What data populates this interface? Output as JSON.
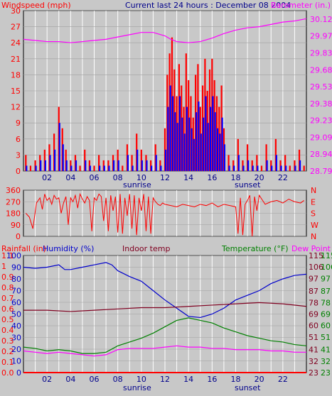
{
  "header": {
    "windspeed_label": "Windspeed (mph)",
    "center_title": "Current last 24 hours : December 08 2004",
    "barometer_label": "Barometer (in.)"
  },
  "bottom_header": {
    "rainfall_label": "Rainfall (in)",
    "humidity_label": "Humidity (%)",
    "indoor_label": "Indoor temp",
    "temperature_label": "Temperature (°F)",
    "dewpoint_label": "Dew Point"
  },
  "markers": {
    "sunrise": "sunrise",
    "sunset": "sunset"
  },
  "colors": {
    "wind_gust": "#ff0000",
    "wind_avg": "#0000ff",
    "barometer": "#ff00ff",
    "direction": "#ff0000",
    "humidity": "#0000cc",
    "indoor": "#800020",
    "temperature": "#008000",
    "dewpoint": "#ff00ff",
    "plot_bg": "#ffffff",
    "panel_bg": "#c8c8c8"
  },
  "chart_data": [
    {
      "type": "bar",
      "title": "Current last 24 hours : December 08 2004",
      "xlabel": "",
      "x_ticks": [
        "02",
        "04",
        "06",
        "08",
        "10",
        "12",
        "14",
        "16",
        "18",
        "20",
        "22"
      ],
      "xlim": [
        0,
        24
      ],
      "y_left_label": "Windspeed (mph)",
      "y_left_ticks": [
        0,
        3,
        6,
        9,
        12,
        15,
        18,
        21,
        24,
        27,
        30
      ],
      "ylim_left": [
        0,
        30
      ],
      "y_right_label": "Barometer (in.)",
      "y_right_ticks": [
        "28.79",
        "28.94",
        "29.09",
        "29.23",
        "29.38",
        "29.53",
        "29.68",
        "29.83",
        "29.97",
        "30.12"
      ],
      "ylim_right": [
        28.79,
        30.19
      ],
      "series": [
        {
          "name": "Windspeed",
          "type": "bar",
          "color": "#ff0000",
          "x": [
            0.2,
            0.6,
            1.0,
            1.4,
            1.8,
            2.2,
            2.6,
            3.0,
            3.3,
            3.6,
            4.0,
            4.4,
            4.8,
            5.2,
            5.6,
            6.0,
            6.4,
            6.8,
            7.2,
            7.6,
            8.0,
            8.4,
            8.8,
            9.2,
            9.6,
            10.0,
            10.4,
            10.8,
            11.2,
            11.6,
            12.0,
            12.2,
            12.4,
            12.6,
            12.8,
            13.0,
            13.2,
            13.4,
            13.6,
            13.8,
            14.0,
            14.2,
            14.4,
            14.6,
            14.8,
            15.0,
            15.2,
            15.4,
            15.6,
            15.8,
            16.0,
            16.2,
            16.4,
            16.6,
            16.8,
            17.0,
            17.4,
            17.8,
            18.2,
            18.6,
            19.0,
            19.4,
            19.8,
            20.2,
            20.6,
            21.0,
            21.4,
            21.8,
            22.2,
            22.6,
            23.0,
            23.4,
            23.8
          ],
          "values": [
            3,
            1,
            2,
            3,
            4,
            5,
            7,
            12,
            8,
            4,
            2,
            3,
            1,
            4,
            2,
            1,
            3,
            2,
            2,
            3,
            4,
            1,
            5,
            3,
            7,
            4,
            3,
            2,
            5,
            2,
            8,
            18,
            22,
            25,
            19,
            14,
            20,
            16,
            12,
            22,
            17,
            14,
            10,
            18,
            20,
            12,
            16,
            21,
            15,
            19,
            21,
            17,
            14,
            12,
            16,
            8,
            3,
            2,
            6,
            2,
            5,
            2,
            3,
            1,
            5,
            2,
            6,
            2,
            3,
            1,
            2,
            4,
            1
          ]
        },
        {
          "name": "Average",
          "type": "bar",
          "color": "#0000ff",
          "x": [
            0.2,
            0.6,
            1.0,
            1.4,
            1.8,
            2.2,
            2.6,
            3.0,
            3.3,
            3.6,
            4.0,
            4.4,
            4.8,
            5.2,
            5.6,
            6.0,
            6.4,
            6.8,
            7.2,
            7.6,
            8.0,
            8.4,
            8.8,
            9.2,
            9.6,
            10.0,
            10.4,
            10.8,
            11.2,
            11.6,
            12.0,
            12.2,
            12.4,
            12.6,
            12.8,
            13.0,
            13.2,
            13.4,
            13.6,
            13.8,
            14.0,
            14.2,
            14.4,
            14.6,
            14.8,
            15.0,
            15.2,
            15.4,
            15.6,
            15.8,
            16.0,
            16.2,
            16.4,
            16.6,
            16.8,
            17.0,
            17.4,
            17.8,
            18.2,
            18.6,
            19.0,
            19.4,
            19.8,
            20.2,
            20.6,
            21.0,
            21.4,
            21.8,
            22.2,
            22.6,
            23.0,
            23.4,
            23.8
          ],
          "values": [
            1,
            0,
            1,
            2,
            2,
            3,
            4,
            9,
            5,
            2,
            1,
            2,
            0,
            2,
            1,
            0,
            1,
            1,
            1,
            2,
            2,
            0,
            3,
            1,
            4,
            2,
            2,
            1,
            3,
            1,
            4,
            12,
            16,
            14,
            11,
            9,
            14,
            10,
            7,
            12,
            10,
            8,
            6,
            11,
            13,
            7,
            10,
            14,
            9,
            12,
            14,
            11,
            8,
            7,
            10,
            5,
            1,
            1,
            3,
            1,
            2,
            1,
            1,
            0,
            2,
            1,
            3,
            1,
            1,
            0,
            1,
            2,
            0
          ]
        },
        {
          "name": "Barometer",
          "type": "line",
          "color": "#ff00ff",
          "axis": "right",
          "x": [
            0,
            1,
            2,
            3,
            4,
            5,
            6,
            7,
            8,
            9,
            10,
            11,
            12,
            12.5,
            13,
            14,
            15,
            16,
            17,
            18,
            19,
            20,
            21,
            22,
            23,
            24
          ],
          "values": [
            29.94,
            29.93,
            29.92,
            29.92,
            29.91,
            29.92,
            29.93,
            29.94,
            29.96,
            29.98,
            30.0,
            30.0,
            29.97,
            29.94,
            29.92,
            29.91,
            29.92,
            29.95,
            29.99,
            30.02,
            30.04,
            30.05,
            30.07,
            30.09,
            30.1,
            30.12
          ]
        }
      ]
    },
    {
      "type": "line",
      "xlim": [
        0,
        24
      ],
      "y_left_ticks": [
        0,
        90,
        180,
        270,
        360
      ],
      "ylim": [
        0,
        360
      ],
      "y_right_ticks": [
        "N",
        "W",
        "S",
        "E",
        "N"
      ],
      "series": [
        {
          "name": "Wind Direction",
          "color": "#ff0000",
          "x": [
            0.2,
            0.5,
            0.8,
            1.1,
            1.4,
            1.6,
            1.8,
            2.0,
            2.2,
            2.4,
            2.6,
            2.8,
            3.0,
            3.2,
            3.4,
            3.6,
            3.8,
            4.0,
            4.2,
            4.4,
            4.6,
            4.8,
            5.0,
            5.2,
            5.4,
            5.6,
            5.8,
            6.0,
            6.2,
            6.4,
            6.6,
            6.8,
            7.0,
            7.2,
            7.4,
            7.6,
            7.8,
            8.0,
            8.2,
            8.4,
            8.6,
            8.8,
            9.0,
            9.2,
            9.4,
            9.6,
            9.8,
            10.0,
            10.2,
            10.4,
            10.6,
            10.8,
            11.0,
            11.2,
            11.4,
            11.6,
            11.8,
            12.0,
            12.5,
            13.0,
            13.5,
            14.0,
            14.5,
            15.0,
            15.5,
            16.0,
            16.5,
            17.0,
            17.5,
            18.0,
            18.2,
            18.4,
            18.6,
            18.8,
            19.0,
            19.2,
            19.4,
            19.6,
            19.8,
            20.0,
            20.5,
            21.0,
            21.5,
            22.0,
            22.5,
            23.0,
            23.5,
            23.8
          ],
          "values": [
            180,
            150,
            60,
            260,
            300,
            210,
            330,
            280,
            300,
            250,
            320,
            290,
            300,
            180,
            260,
            310,
            90,
            300,
            270,
            320,
            220,
            330,
            290,
            260,
            310,
            280,
            40,
            300,
            280,
            330,
            310,
            120,
            300,
            40,
            320,
            200,
            310,
            30,
            330,
            20,
            300,
            160,
            330,
            60,
            320,
            10,
            300,
            200,
            330,
            40,
            310,
            20,
            300,
            270,
            250,
            240,
            260,
            250,
            240,
            230,
            250,
            240,
            230,
            250,
            240,
            260,
            230,
            250,
            240,
            230,
            20,
            300,
            10,
            250,
            280,
            320,
            0,
            310,
            200,
            320,
            250,
            270,
            280,
            260,
            290,
            270,
            260,
            280
          ]
        }
      ]
    },
    {
      "type": "line",
      "xlim": [
        0,
        24
      ],
      "y_left_labels": [
        {
          "name": "Rainfall (in)",
          "ticks": [
            "0.0",
            "0.1",
            "0.2",
            "0.3",
            "0.4",
            "0.5",
            "0.6",
            "0.7",
            "0.8",
            "0.9",
            "1",
            "1.1"
          ]
        },
        {
          "name": "Humidity (%)",
          "ticks": [
            0,
            10,
            20,
            30,
            40,
            50,
            60,
            70,
            80,
            90,
            100
          ]
        }
      ],
      "y_right_labels": [
        {
          "name": "Indoor temp",
          "ticks": [
            23,
            32,
            41,
            51,
            60,
            69,
            78,
            87,
            97,
            106,
            115
          ]
        },
        {
          "name": "Temperature (°F)",
          "ticks": [
            23,
            32,
            41,
            51,
            60,
            69,
            78,
            87,
            97,
            106,
            115
          ]
        }
      ],
      "ylim_humidity": [
        0,
        100
      ],
      "ylim_temp": [
        23,
        115
      ],
      "series": [
        {
          "name": "Humidity",
          "color": "#0000cc",
          "axis": "humidity",
          "x": [
            0,
            1,
            2,
            3,
            3.5,
            4,
            5,
            6,
            7,
            7.5,
            8,
            9,
            10,
            11,
            12,
            13,
            14,
            15,
            16,
            17,
            18,
            19,
            20,
            21,
            22,
            23,
            24
          ],
          "values": [
            90,
            89,
            90,
            92,
            88,
            88,
            90,
            92,
            94,
            92,
            87,
            82,
            78,
            70,
            62,
            55,
            48,
            47,
            50,
            55,
            62,
            66,
            70,
            76,
            80,
            83,
            84
          ]
        },
        {
          "name": "Indoor temp",
          "color": "#800020",
          "axis": "temp",
          "x": [
            0,
            2,
            4,
            6,
            8,
            10,
            12,
            14,
            16,
            18,
            20,
            22,
            24
          ],
          "values": [
            72,
            72,
            71,
            72,
            73,
            74,
            74,
            75,
            76,
            77,
            78,
            77,
            75
          ]
        },
        {
          "name": "Temperature",
          "color": "#008000",
          "axis": "temp",
          "x": [
            0,
            1,
            2,
            3,
            4,
            5,
            6,
            7,
            8,
            9,
            10,
            11,
            12,
            13,
            14,
            15,
            16,
            17,
            18,
            19,
            20,
            21,
            22,
            23,
            24
          ],
          "values": [
            43,
            42,
            40,
            41,
            40,
            38,
            38,
            39,
            44,
            47,
            50,
            54,
            59,
            64,
            66,
            64,
            62,
            58,
            55,
            52,
            50,
            48,
            47,
            45,
            44
          ]
        },
        {
          "name": "Dew Point",
          "color": "#ff00ff",
          "axis": "temp",
          "x": [
            0,
            1,
            2,
            3,
            4,
            5,
            6,
            7,
            8,
            9,
            10,
            11,
            12,
            13,
            14,
            15,
            16,
            17,
            18,
            19,
            20,
            21,
            22,
            23,
            24
          ],
          "values": [
            40,
            39,
            38,
            39,
            38,
            37,
            36,
            37,
            41,
            42,
            42,
            42,
            43,
            44,
            43,
            43,
            42,
            42,
            41,
            41,
            41,
            40,
            40,
            39,
            39
          ]
        },
        {
          "name": "Rainfall",
          "color": "#ff0000",
          "axis": "humidity",
          "x": [
            0,
            24
          ],
          "values": [
            0,
            0
          ]
        }
      ]
    }
  ]
}
